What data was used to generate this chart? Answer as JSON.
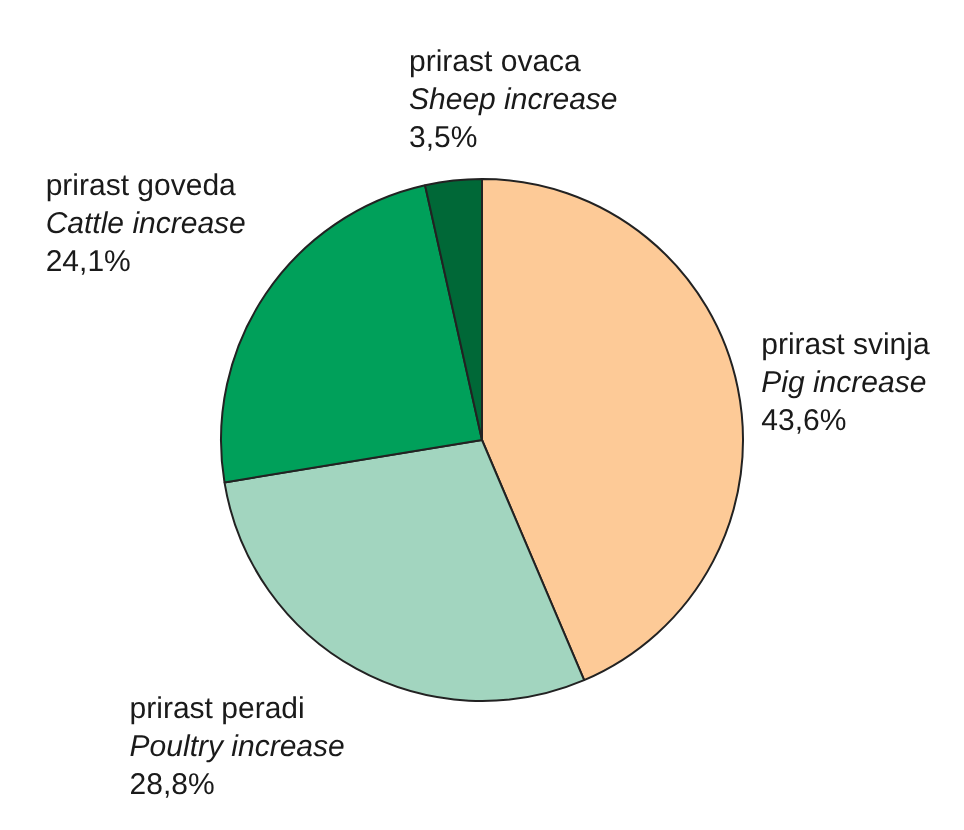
{
  "chart_data": {
    "type": "pie",
    "categories": [
      "prirast svinja\nPig increase",
      "prirast peradi\nPoultry increase",
      "prirast goveda\nCattle increase",
      "prirast ovaca\nSheep increase"
    ],
    "values": [
      43.6,
      28.8,
      24.1,
      3.5
    ],
    "colors": [
      "#fdca97",
      "#a2d5bf",
      "#00a05a",
      "#006837"
    ],
    "value_labels": [
      "43,6%",
      "28,8%",
      "24,1%",
      "3,5%"
    ]
  }
}
